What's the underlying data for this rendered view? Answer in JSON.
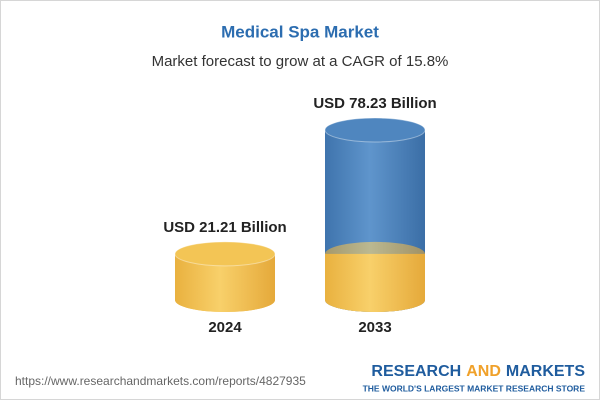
{
  "chart_data": {
    "type": "cylinder",
    "title": "Medical Spa Market",
    "subtitle": "Market forecast to grow at a CAGR of 15.8%",
    "categories": [
      "2024",
      "2033"
    ],
    "values": [
      21.21,
      78.23
    ],
    "value_labels": [
      "USD 21.21 Billion",
      "USD 78.23 Billion"
    ],
    "colors": [
      "#f3c555",
      "#4f86bf"
    ]
  },
  "footer": {
    "url": "https://www.researchandmarkets.com/reports/4827935",
    "brand": [
      "RESEARCH",
      "AND",
      "MARKETS"
    ],
    "tagline": "THE WORLD'S LARGEST MARKET RESEARCH STORE"
  }
}
